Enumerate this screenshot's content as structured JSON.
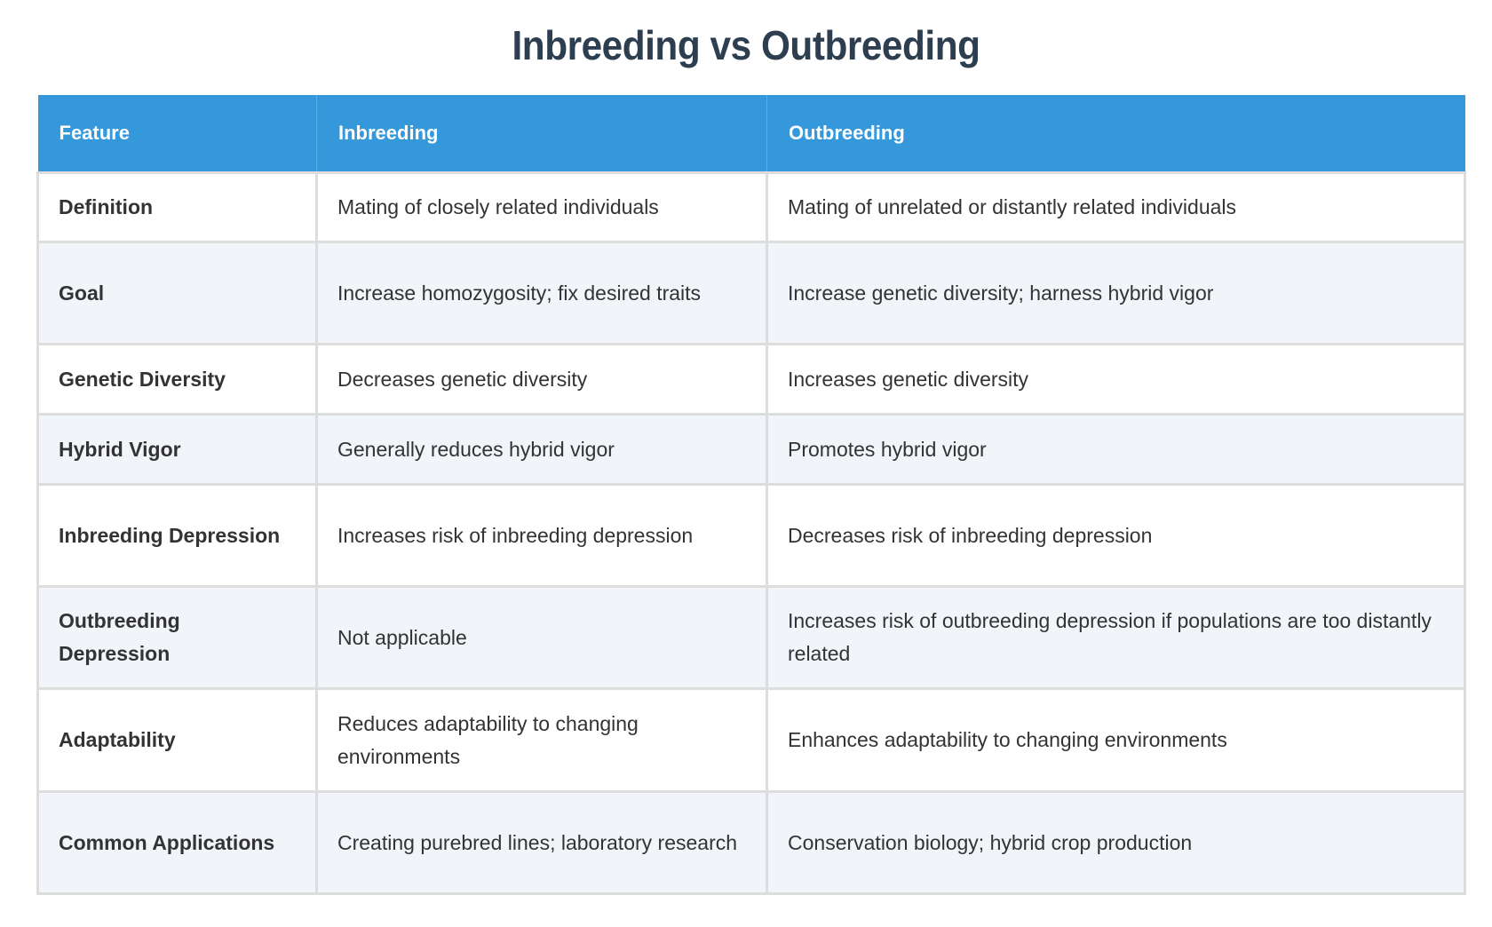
{
  "title": "Inbreeding vs Outbreeding",
  "headers": [
    "Feature",
    "Inbreeding",
    "Outbreeding"
  ],
  "rows": [
    [
      "Definition",
      "Mating of closely related individuals",
      "Mating of unrelated or distantly related individuals"
    ],
    [
      "Goal",
      "Increase homozygosity; fix desired traits",
      "Increase genetic diversity; harness hybrid vigor"
    ],
    [
      "Genetic Diversity",
      "Decreases genetic diversity",
      "Increases genetic diversity"
    ],
    [
      "Hybrid Vigor",
      "Generally reduces hybrid vigor",
      "Promotes hybrid vigor"
    ],
    [
      "Inbreeding Depression",
      "Increases risk of inbreeding depression",
      "Decreases risk of inbreeding depression"
    ],
    [
      "Outbreeding Depression",
      "Not applicable",
      "Increases risk of outbreeding depression if populations are too distantly related"
    ],
    [
      "Adaptability",
      "Reduces adaptability to changing environments",
      "Enhances adaptability to changing environments"
    ],
    [
      "Common Applications",
      "Creating purebred lines; laboratory research",
      "Conservation biology; hybrid crop production"
    ]
  ],
  "colors": {
    "header_bg": "#3498db",
    "title": "#2c3e50",
    "alt_row": "#f1f4f9"
  }
}
